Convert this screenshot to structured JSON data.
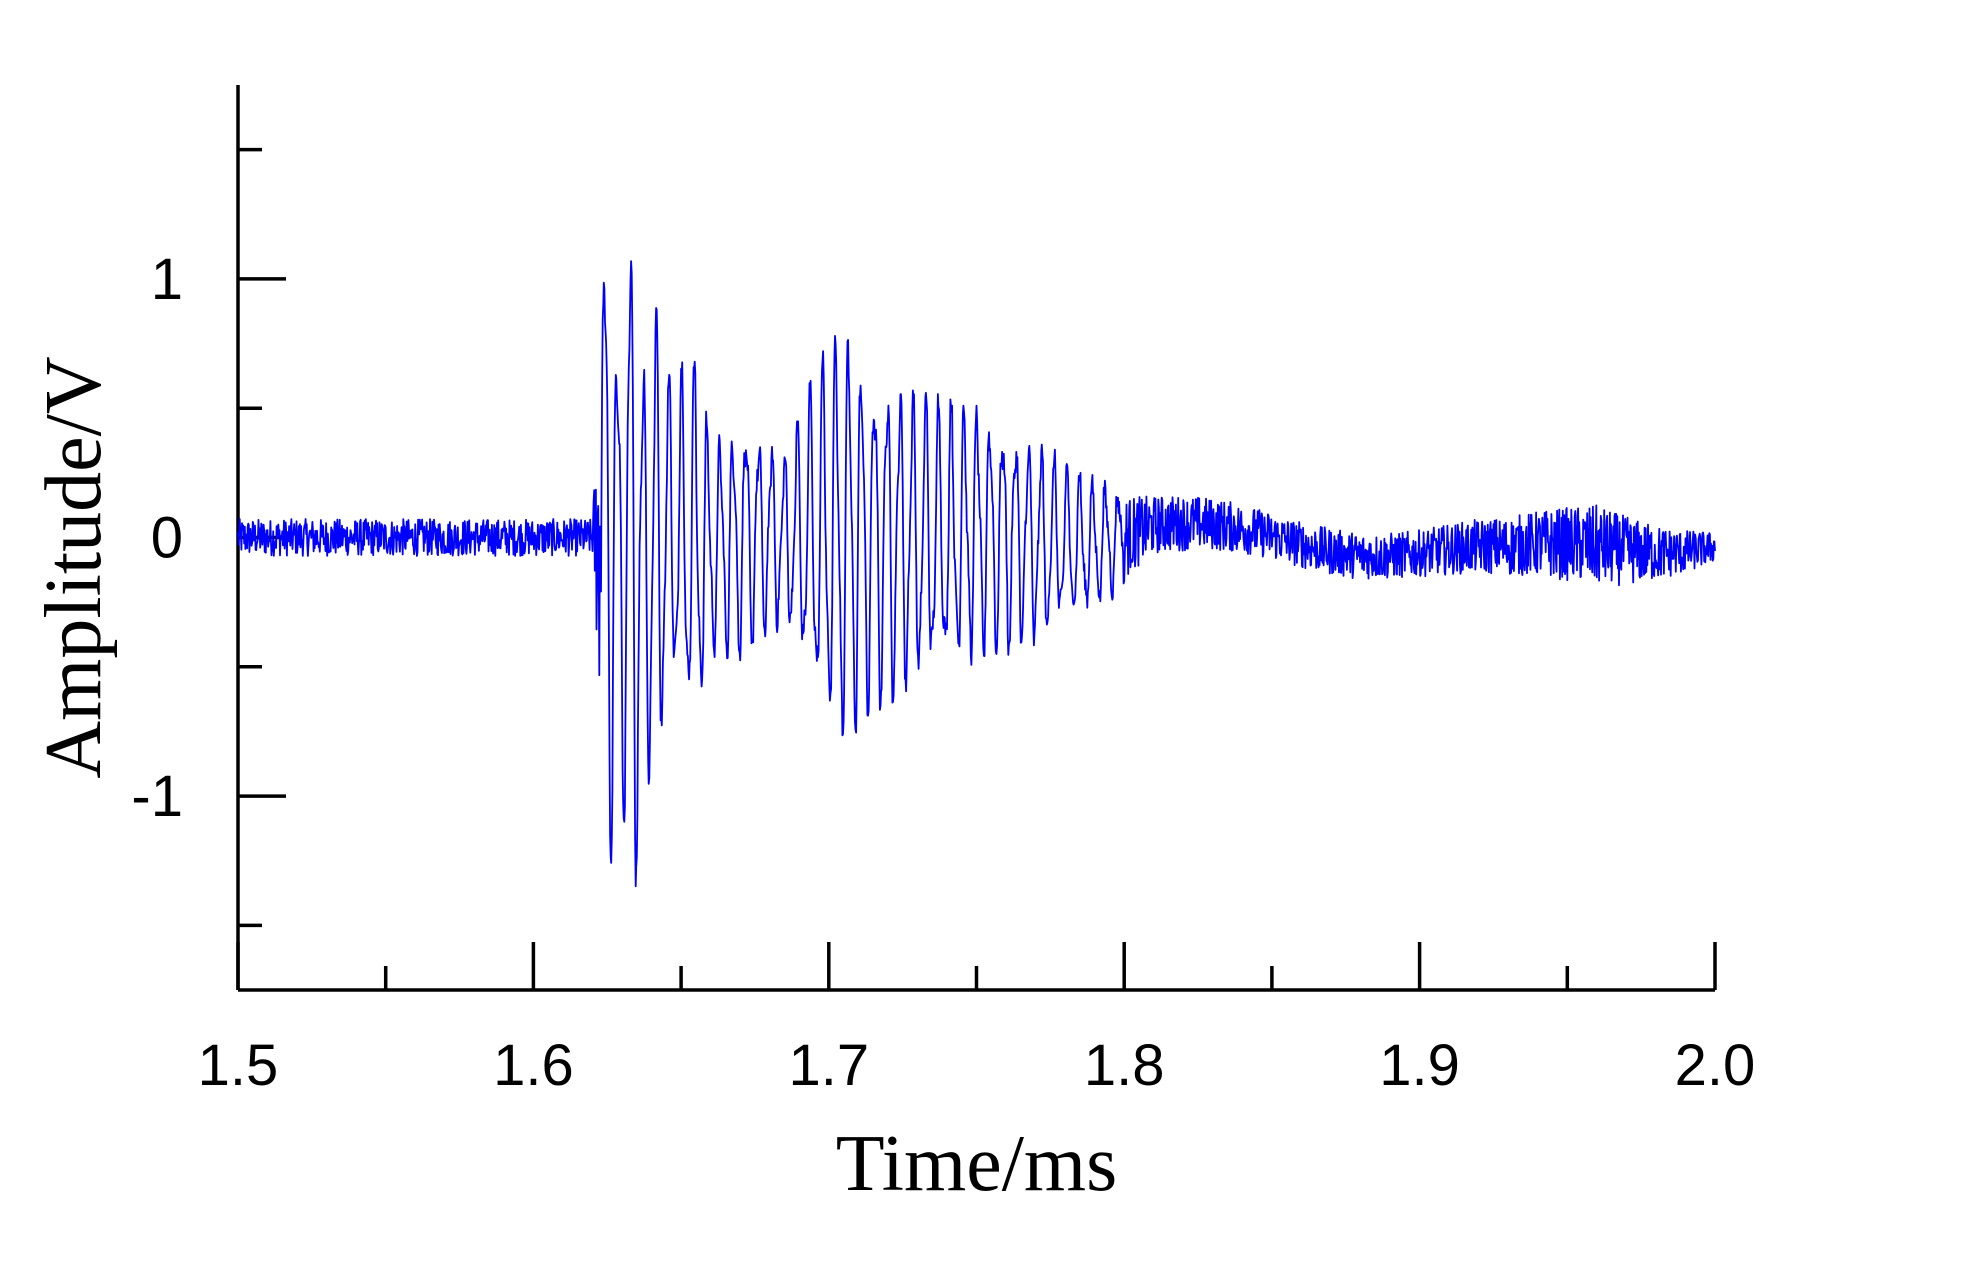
{
  "chart_data": {
    "type": "line",
    "title": "",
    "xlabel": "Time/ms",
    "ylabel": "Amplitude/V",
    "xlim": [
      1.5,
      2.0
    ],
    "ylim": [
      -1.75,
      1.75
    ],
    "x_major_ticks": [
      1.5,
      1.6,
      1.7,
      1.8,
      1.9,
      2.0
    ],
    "x_major_tick_labels": [
      "1.5",
      "1.6",
      "1.7",
      "1.8",
      "1.9",
      "2.0"
    ],
    "x_minor_ticks": [
      1.55,
      1.65,
      1.75,
      1.85,
      1.95
    ],
    "y_major_ticks": [
      -1,
      0,
      1
    ],
    "y_major_tick_labels": [
      "-1",
      "0",
      "1"
    ],
    "y_minor_ticks": [
      -1.5,
      -0.5,
      0.5,
      1.5
    ],
    "grid": false,
    "legend": "none",
    "series": [
      {
        "color": "#0000ff",
        "description": "waveform: low noise before 1.625 ms, burst from 1.625 to 1.66 ms, second burst 1.69-1.77 ms, decaying tail to 2.0 ms",
        "envelope_points": [
          {
            "x": 1.5,
            "max": 0.08,
            "min": -0.08
          },
          {
            "x": 1.62,
            "max": 0.08,
            "min": -0.08
          },
          {
            "x": 1.625,
            "max": 1.5,
            "min": -1.47
          },
          {
            "x": 1.629,
            "max": 0.65,
            "min": -0.75
          },
          {
            "x": 1.633,
            "max": 1.35,
            "min": -1.62
          },
          {
            "x": 1.637,
            "max": 0.65,
            "min": -0.85
          },
          {
            "x": 1.641,
            "max": 0.92,
            "min": -1.0
          },
          {
            "x": 1.646,
            "max": 0.62,
            "min": -0.55
          },
          {
            "x": 1.655,
            "max": 0.7,
            "min": -0.75
          },
          {
            "x": 1.66,
            "max": 0.35,
            "min": -0.45
          },
          {
            "x": 1.672,
            "max": 0.45,
            "min": -0.45
          },
          {
            "x": 1.685,
            "max": 0.3,
            "min": -0.3
          },
          {
            "x": 1.695,
            "max": 0.62,
            "min": -0.6
          },
          {
            "x": 1.704,
            "max": 0.82,
            "min": -0.8
          },
          {
            "x": 1.715,
            "max": 0.62,
            "min": -0.65
          },
          {
            "x": 1.73,
            "max": 0.55,
            "min": -0.55
          },
          {
            "x": 1.75,
            "max": 0.5,
            "min": -0.45
          },
          {
            "x": 1.77,
            "max": 0.35,
            "min": -0.4
          },
          {
            "x": 1.79,
            "max": 0.2,
            "min": -0.25
          },
          {
            "x": 1.81,
            "max": 0.15,
            "min": -0.1
          },
          {
            "x": 1.85,
            "max": 0.1,
            "min": -0.1
          },
          {
            "x": 1.9,
            "max": 0.05,
            "min": -0.15
          },
          {
            "x": 1.93,
            "max": 0.05,
            "min": -0.2
          },
          {
            "x": 1.96,
            "max": 0.15,
            "min": -0.2
          },
          {
            "x": 2.0,
            "max": 0.05,
            "min": -0.08
          }
        ]
      }
    ]
  }
}
